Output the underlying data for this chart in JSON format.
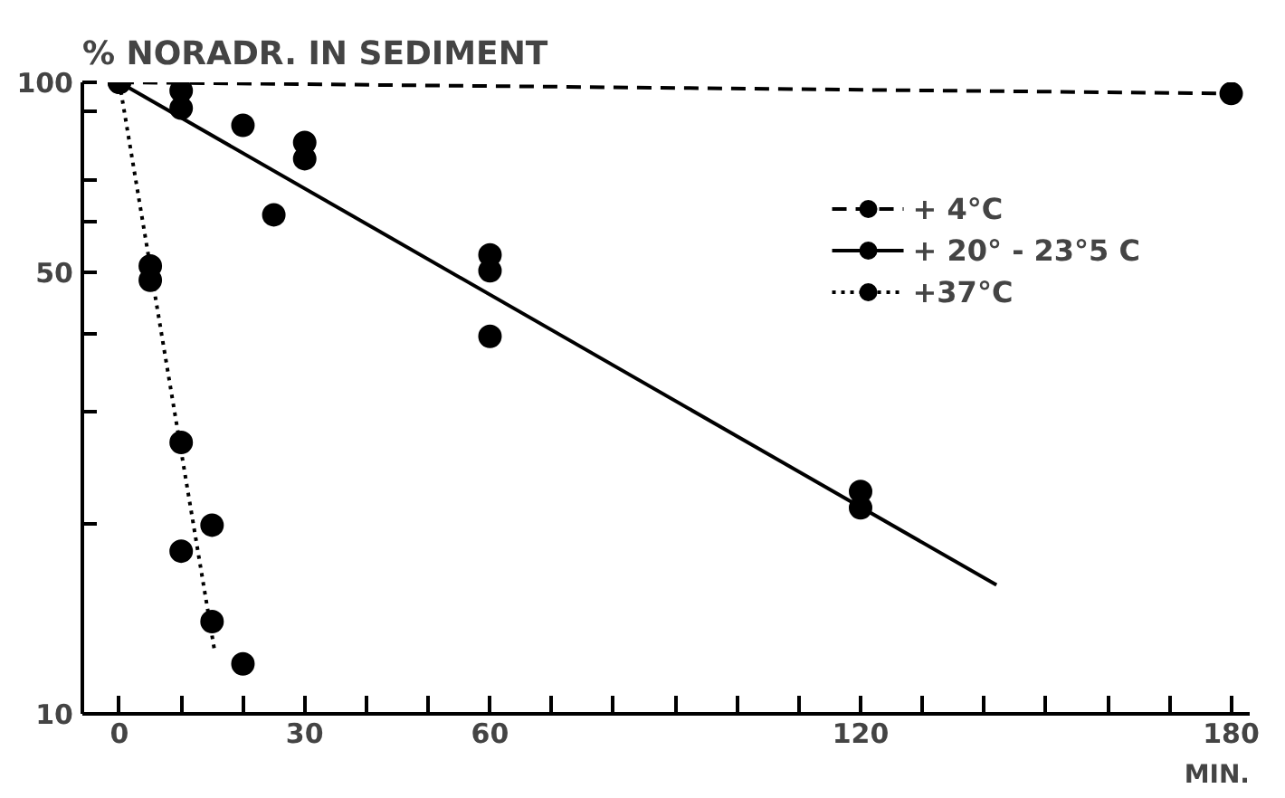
{
  "chart_data": {
    "type": "scatter",
    "ylabel": "% NORADR. IN SEDIMENT",
    "xlabel": "MIN.",
    "log": "y",
    "xlim": [
      -6,
      183
    ],
    "ylim": [
      10,
      100
    ],
    "xticks": [
      0,
      {
        "value": 10,
        "label": null
      },
      {
        "value": 20,
        "label": null
      },
      30,
      {
        "value": 40,
        "label": null
      },
      {
        "value": 50,
        "label": null
      },
      60,
      {
        "value": 70,
        "label": null
      },
      {
        "value": 80,
        "label": null
      },
      {
        "value": 90,
        "label": null
      },
      {
        "value": 100,
        "label": null
      },
      {
        "value": 110,
        "label": null
      },
      120,
      {
        "value": 130,
        "label": null
      },
      {
        "value": 140,
        "label": null
      },
      {
        "value": 150,
        "label": null
      },
      {
        "value": 160,
        "label": null
      },
      {
        "value": 170,
        "label": null
      },
      180
    ],
    "yticks": [
      10,
      {
        "value": 20,
        "label": null
      },
      {
        "value": 30,
        "label": null
      },
      {
        "value": 40,
        "label": null
      },
      50,
      {
        "value": 60,
        "label": null
      },
      {
        "value": 70,
        "label": null
      },
      {
        "value": 90,
        "label": null
      },
      100
    ],
    "grid": false,
    "legend": "top right",
    "series": [
      {
        "name": "+ 4°C",
        "type": "line",
        "line_style": "dashed",
        "marker": "circle",
        "color": "#000000",
        "x": [
          0,
          180
        ],
        "values": [
          100,
          96
        ]
      },
      {
        "name": "+ 20° - 23°5 C",
        "marker": "circle",
        "color": "#000000",
        "x": [
          0,
          10,
          10,
          20,
          25,
          30,
          30,
          60,
          60,
          60,
          120,
          120
        ],
        "values": [
          100,
          97,
          91,
          85.5,
          61.7,
          80.3,
          75.7,
          53.3,
          50.3,
          39.6,
          22.5,
          21.2
        ]
      },
      {
        "type": "line",
        "line_style": "solid",
        "color": "#000000",
        "x": [
          0,
          142
        ],
        "values": [
          100,
          16
        ]
      },
      {
        "name": "+37°C",
        "marker": "circle",
        "color": "#000000",
        "x": [
          5,
          5,
          10,
          10,
          15,
          15,
          20
        ],
        "values": [
          51.2,
          48.6,
          26.9,
          18.1,
          19.9,
          14.0,
          12.0
        ]
      },
      {
        "type": "line",
        "line_style": "dotted",
        "color": "#000000",
        "x": [
          0,
          15.4
        ],
        "values": [
          100,
          12.6
        ]
      }
    ]
  }
}
